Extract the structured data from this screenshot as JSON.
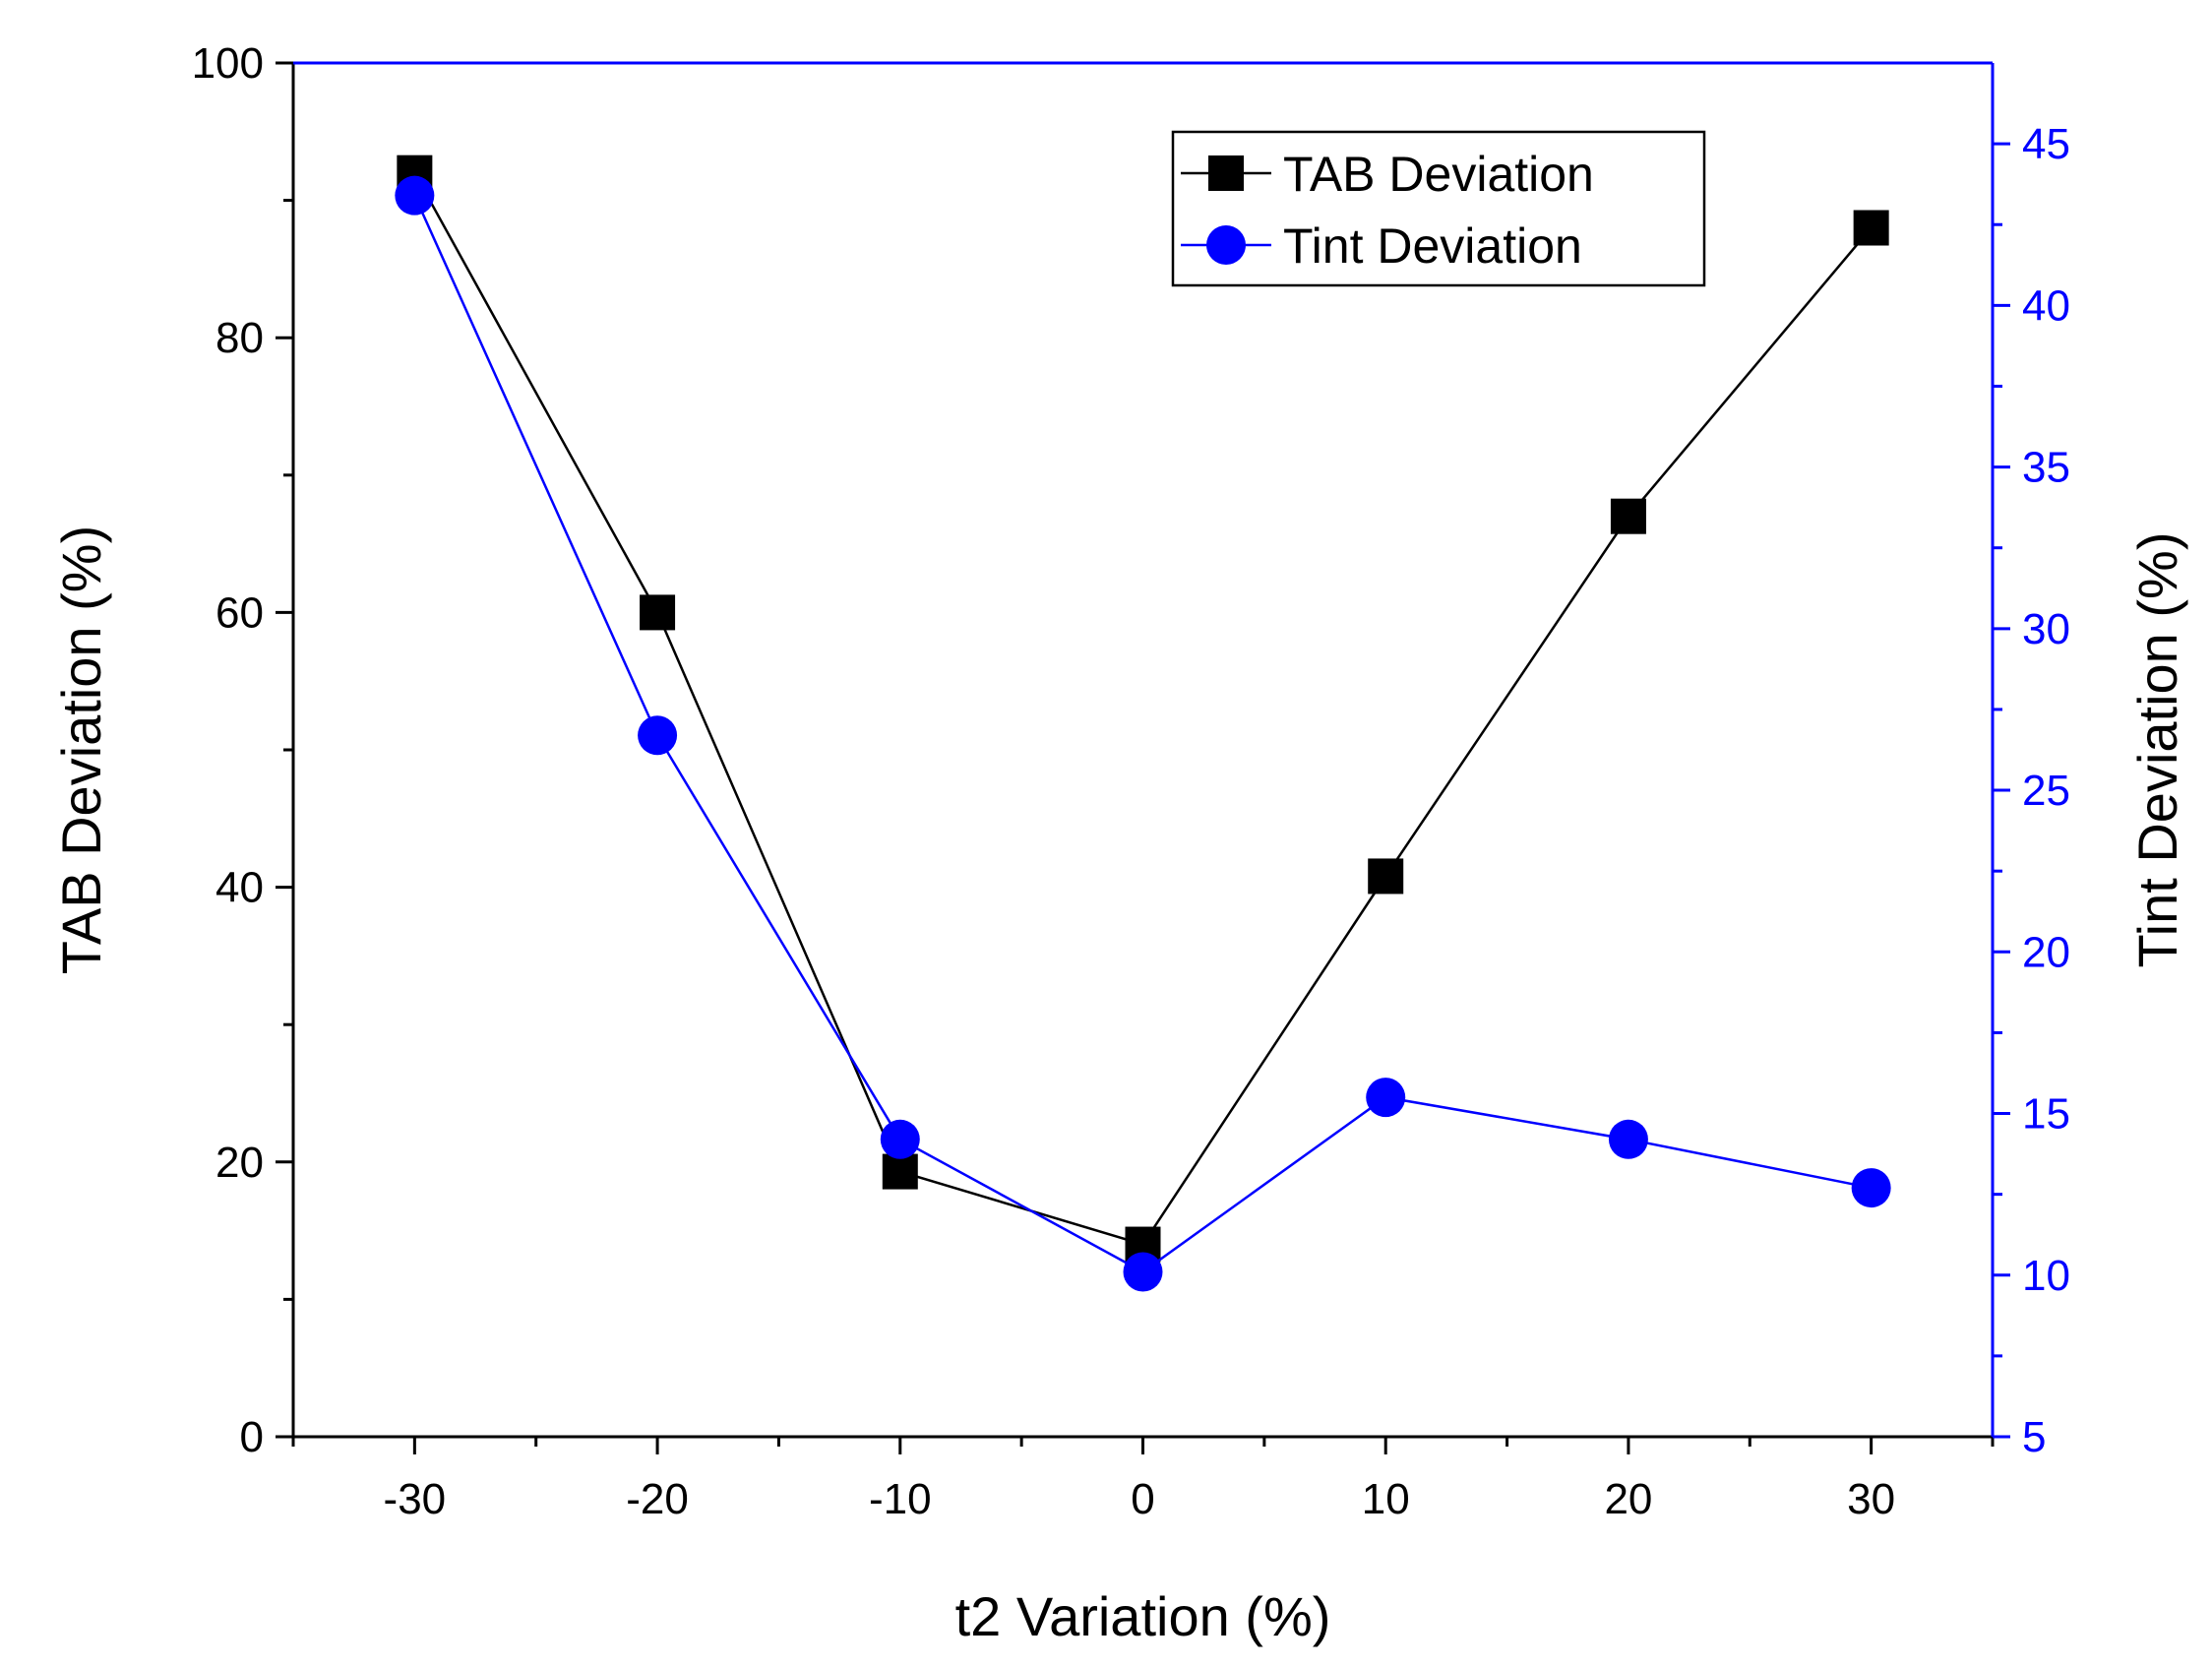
{
  "chart_data": {
    "type": "line",
    "title": "",
    "xlabel": "t2 Variation (%)",
    "ylabel": "TAB Deviation (%)",
    "y2label": "Tint Deviation (%)",
    "xlim": [
      -35,
      35
    ],
    "ylim": [
      0,
      100
    ],
    "y2lim": [
      5,
      47.5
    ],
    "xticks": [
      -30,
      -20,
      -10,
      0,
      10,
      20,
      30
    ],
    "yticks": [
      0,
      20,
      40,
      60,
      80,
      100
    ],
    "y2ticks": [
      5,
      10,
      15,
      20,
      25,
      30,
      35,
      40,
      45
    ],
    "x": [
      -30,
      -20,
      -10,
      0,
      10,
      20,
      30
    ],
    "series": [
      {
        "name": "TAB Deviation",
        "axis": "left",
        "marker": "square",
        "color": "#000000",
        "values": [
          92,
          60,
          19.3,
          14,
          40.8,
          67,
          88
        ]
      },
      {
        "name": "Tint Deviation",
        "axis": "right",
        "marker": "circle",
        "color": "#0000ff",
        "values": [
          43.4,
          26.7,
          14.2,
          10.1,
          15.5,
          14.2,
          12.7
        ]
      }
    ],
    "legend_position": "top-right",
    "grid": false
  }
}
